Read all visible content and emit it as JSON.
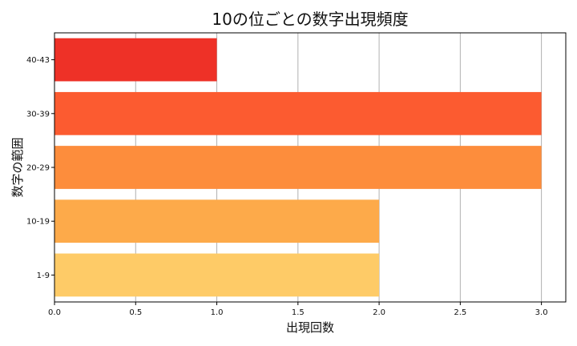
{
  "chart_data": {
    "type": "bar",
    "orientation": "horizontal",
    "title": "10の位ごとの数字出現頻度",
    "xlabel": "出現回数",
    "ylabel": "数字の範囲",
    "categories": [
      "1-9",
      "10-19",
      "20-29",
      "30-39",
      "40-43"
    ],
    "values": [
      2,
      2,
      3,
      3,
      1
    ],
    "colors": [
      "#fecb67",
      "#fdaa4a",
      "#fd8d3c",
      "#fc5b30",
      "#ee3127"
    ],
    "xlim": [
      0,
      3.15
    ],
    "xticks": [
      "0.0",
      "0.5",
      "1.0",
      "1.5",
      "2.0",
      "2.5",
      "3.0"
    ],
    "grid": "x"
  }
}
